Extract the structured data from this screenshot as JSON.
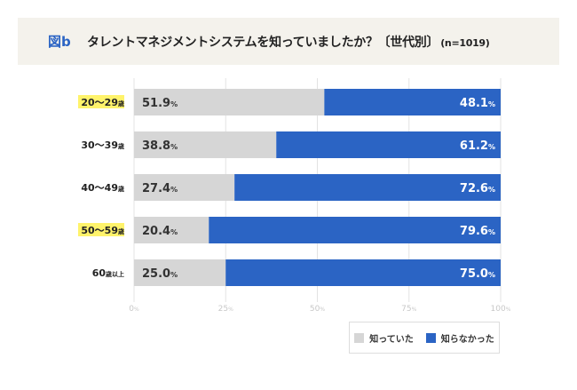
{
  "header": {
    "figure_label": "図b",
    "title": "タレントマネジメントシステムを知っていましたか？〔世代別〕",
    "n_label": "(n=1019)"
  },
  "colors": {
    "knew": "#d6d6d6",
    "did_not_know": "#2b64c4",
    "highlight": "#fff36b"
  },
  "chart_data": {
    "type": "bar",
    "stacked": true,
    "orientation": "horizontal",
    "title": "タレントマネジメントシステムを知っていましたか？〔世代別〕",
    "categories": [
      "20〜29歳",
      "30〜39歳",
      "40〜49歳",
      "50〜59歳",
      "60歳以上"
    ],
    "highlighted": [
      true,
      false,
      false,
      true,
      false
    ],
    "series": [
      {
        "name": "知っていた",
        "values": [
          51.9,
          38.8,
          27.4,
          20.4,
          25.0
        ]
      },
      {
        "name": "知らなかった",
        "values": [
          48.1,
          61.2,
          72.6,
          79.6,
          75.0
        ]
      }
    ],
    "xlim": [
      0,
      100
    ],
    "xticks": [
      0,
      25,
      50,
      75,
      100
    ],
    "tick_suffix": "%",
    "value_suffix": "%",
    "grid": true,
    "legend_position": "bottom-right"
  }
}
